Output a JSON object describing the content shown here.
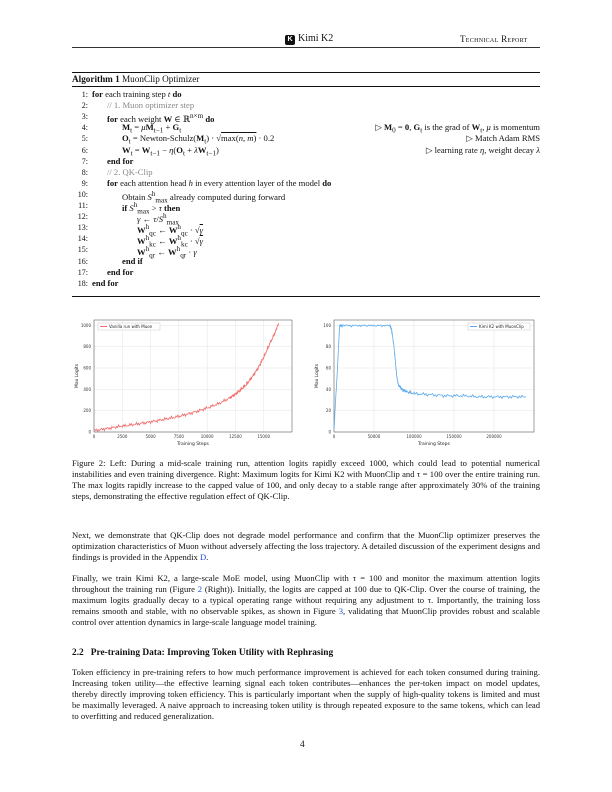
{
  "header": {
    "title": "Kimi K2",
    "right": "Technical Report",
    "logo_letter": "K"
  },
  "algorithm": {
    "label": "Algorithm 1",
    "name": "MuonClip Optimizer",
    "lines": [
      {
        "n": "1:",
        "indent": 0,
        "html": "<span class='kw'>for</span> each training step <i>t</i> <span class='kw'>do</span>",
        "comment": ""
      },
      {
        "n": "2:",
        "indent": 1,
        "html": "<span class='gray'>// 1. Muon optimizer step</span>",
        "comment": ""
      },
      {
        "n": "3:",
        "indent": 1,
        "html": "<span class='kw'>for</span> each weight <b>W</b> ∈ ℝ<sup>n×m</sup> <span class='kw'>do</span>",
        "comment": ""
      },
      {
        "n": "4:",
        "indent": 2,
        "html": "<b>M</b><sub>t</sub> = <i>μ</i><b>M</b><sub>t−1</sub> + <b>G</b><sub>t</sub>",
        "comment": "▷ <b>M</b><sub>0</sub> = <b>0</b>, <b>G</b><sub>t</sub> is the grad of <b>W</b><sub>t</sub>, <i>μ</i> is momentum"
      },
      {
        "n": "5:",
        "indent": 2,
        "html": "<b>O</b><sub>t</sub> = Newton-Schulz(<b>M</b><sub>t</sub>) · √<span style='text-decoration:overline'>max(<i>n</i>, <i>m</i>)</span> · 0.2",
        "comment": "▷ Match Adam RMS"
      },
      {
        "n": "6:",
        "indent": 2,
        "html": "<b>W</b><sub>t</sub> = <b>W</b><sub>t−1</sub> − <i>η</i>(<b>O</b><sub>t</sub> + <i>λ</i><b>W</b><sub>t−1</sub>)",
        "comment": "▷ learning rate <i>η</i>, weight decay <i>λ</i>"
      },
      {
        "n": "7:",
        "indent": 1,
        "html": "<span class='kw'>end for</span>",
        "comment": ""
      },
      {
        "n": "8:",
        "indent": 1,
        "html": "<span class='gray'>// 2. QK-Clip</span>",
        "comment": ""
      },
      {
        "n": "9:",
        "indent": 1,
        "html": "<span class='kw'>for</span> each attention head <i>h</i> in every attention layer of the model <span class='kw'>do</span>",
        "comment": ""
      },
      {
        "n": "10:",
        "indent": 2,
        "html": "Obtain <i>S</i><sup>h</sup><sub>max</sub> already computed during forward",
        "comment": ""
      },
      {
        "n": "11:",
        "indent": 2,
        "html": "<span class='kw'>if</span> <i>S</i><sup>h</sup><sub>max</sub> &gt; <i>τ</i> <span class='kw'>then</span>",
        "comment": ""
      },
      {
        "n": "12:",
        "indent": 3,
        "html": "<i>γ</i> ← <i>τ</i>/<i>S</i><sup>h</sup><sub>max</sub>",
        "comment": ""
      },
      {
        "n": "13:",
        "indent": 3,
        "html": "<b>W</b><sup>h</sup><sub>qc</sub> ← <b>W</b><sup>h</sup><sub>qc</sub> · √<span style='text-decoration:overline'><i>γ</i></span>",
        "comment": ""
      },
      {
        "n": "14:",
        "indent": 3,
        "html": "<b>W</b><sup>h</sup><sub>kc</sub> ← <b>W</b><sup>h</sup><sub>kc</sub> · √<span style='text-decoration:overline'><i>γ</i></span>",
        "comment": ""
      },
      {
        "n": "15:",
        "indent": 3,
        "html": "<b>W</b><sup>h</sup><sub>qr</sub> ← <b>W</b><sup>h</sup><sub>qr</sub> · <i>γ</i>",
        "comment": ""
      },
      {
        "n": "16:",
        "indent": 2,
        "html": "<span class='kw'>end if</span>",
        "comment": ""
      },
      {
        "n": "17:",
        "indent": 1,
        "html": "<span class='kw'>end for</span>",
        "comment": ""
      },
      {
        "n": "18:",
        "indent": 0,
        "html": "<span class='kw'>end for</span>",
        "comment": ""
      }
    ]
  },
  "chart_data": [
    {
      "type": "line",
      "legend": "Vanilla run with Muon",
      "xlabel": "Training Steps",
      "ylabel": "Max Logits",
      "xlim": [
        0,
        17500
      ],
      "ylim": [
        0,
        1050
      ],
      "xticks": [
        0,
        2500,
        5000,
        7500,
        10000,
        12500,
        15000
      ],
      "yticks": [
        0,
        200,
        400,
        600,
        800,
        1000
      ],
      "color": "#f06b6b",
      "series": [
        {
          "x": [
            0,
            1000,
            2000,
            3000,
            4000,
            5000,
            6000,
            7000,
            8000,
            9000,
            10000,
            11000,
            12000,
            12500,
            13000,
            13500,
            14000,
            14500,
            15000,
            15500,
            16000,
            16300
          ],
          "values": [
            12,
            30,
            48,
            62,
            78,
            95,
            115,
            135,
            160,
            190,
            225,
            265,
            320,
            355,
            400,
            450,
            520,
            600,
            700,
            820,
            930,
            1020
          ]
        }
      ]
    },
    {
      "type": "line",
      "legend": "Kimi K2 with MuonClip",
      "xlabel": "Training Steps",
      "ylabel": "Max Logits",
      "xlim": [
        0,
        250000
      ],
      "ylim": [
        0,
        105
      ],
      "xticks": [
        0,
        50000,
        100000,
        150000,
        200000
      ],
      "yticks": [
        0,
        20,
        40,
        60,
        80,
        100
      ],
      "color": "#5aa9ee",
      "series": [
        {
          "x": [
            0,
            2000,
            4000,
            6000,
            7000,
            10000,
            30000,
            50000,
            70000,
            72000,
            75000,
            78000,
            80000,
            85000,
            90000,
            100000,
            120000,
            140000,
            160000,
            180000,
            200000,
            220000,
            240000
          ],
          "values": [
            2,
            30,
            55,
            85,
            100,
            100,
            100,
            100,
            100,
            96,
            80,
            55,
            45,
            40,
            38,
            36,
            35,
            34,
            34,
            33,
            33,
            33,
            33
          ]
        }
      ]
    }
  ],
  "caption": "Figure 2: Left: During a mid-scale training run, attention logits rapidly exceed 1000, which could lead to potential numerical instabilities and even training divergence. Right: Maximum logits for Kimi K2 with MuonClip and τ = 100 over the entire training run. The max logits rapidly increase to the capped value of 100, and only decay to a stable range after approximately 30% of the training steps, demonstrating the effective regulation effect of QK-Clip.",
  "para1": {
    "text": "Next, we demonstrate that QK-Clip does not degrade model performance and confirm that the MuonClip optimizer preserves the optimization characteristics of Muon without adversely affecting the loss trajectory. A detailed discussion of the experiment designs and findings is provided in the Appendix ",
    "link": "D",
    "end": "."
  },
  "para2": {
    "a": "Finally, we train Kimi K2, a large-scale MoE model, using MuonClip with τ = 100 and monitor the maximum attention logits throughout the training run (Figure ",
    "link1": "2",
    "b": " (Right)). Initially, the logits are capped at 100 due to QK-Clip. Over the course of training, the maximum logits gradually decay to a typical operating range without requiring any adjustment to τ. Importantly, the training loss remains smooth and stable, with no observable spikes, as shown in Figure ",
    "link2": "3",
    "c": ", validating that MuonClip provides robust and scalable control over attention dynamics in large-scale language model training."
  },
  "section": {
    "number": "2.2",
    "title": "Pre-training Data: Improving Token Utility with Rephrasing"
  },
  "para3": "Token efficiency in pre-training refers to how much performance improvement is achieved for each token consumed during training. Increasing token utility—the effective learning signal each token contributes—enhances the per-token impact on model updates, thereby directly improving token efficiency. This is particularly important when the supply of high-quality tokens is limited and must be maximally leveraged. A naive approach to increasing token utility is through repeated exposure to the same tokens, which can lead to overfitting and reduced generalization.",
  "page_number": "4"
}
